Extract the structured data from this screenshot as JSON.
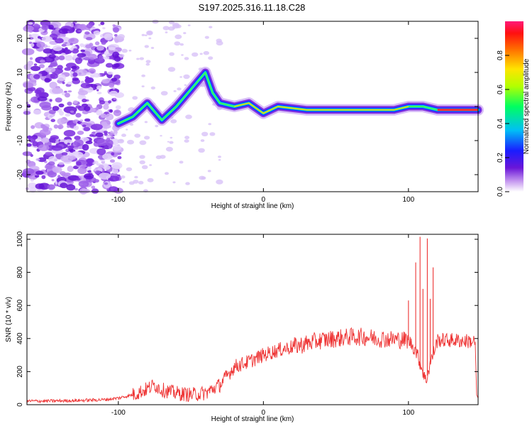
{
  "title": "S197.2025.316.11.18.C28",
  "chart_data": [
    {
      "type": "heatmap",
      "xlabel": "Height of straight line (km)",
      "ylabel": "Frequency (Hz)",
      "xlim": [
        -163,
        148
      ],
      "ylim": [
        -25,
        25
      ],
      "xticks": [
        -100,
        0,
        100
      ],
      "yticks": [
        -20,
        -10,
        0,
        10,
        20
      ],
      "colorbar": {
        "label": "Normalized spectral amplitude",
        "range": [
          0,
          1
        ],
        "ticks": [
          "0.0",
          "0.2",
          "0.4",
          "0.6",
          "0.8"
        ]
      },
      "ridge": [
        {
          "x": -100,
          "y": -5
        },
        {
          "x": -90,
          "y": -3
        },
        {
          "x": -80,
          "y": 1
        },
        {
          "x": -70,
          "y": -4
        },
        {
          "x": -60,
          "y": 0
        },
        {
          "x": -50,
          "y": 5
        },
        {
          "x": -40,
          "y": 10
        },
        {
          "x": -35,
          "y": 4
        },
        {
          "x": -30,
          "y": 1
        },
        {
          "x": -20,
          "y": 0
        },
        {
          "x": -10,
          "y": 1
        },
        {
          "x": 0,
          "y": -2
        },
        {
          "x": 10,
          "y": 0
        },
        {
          "x": 30,
          "y": -1
        },
        {
          "x": 60,
          "y": -1
        },
        {
          "x": 90,
          "y": -1
        },
        {
          "x": 100,
          "y": 0
        },
        {
          "x": 110,
          "y": 0
        },
        {
          "x": 120,
          "y": -1
        },
        {
          "x": 148,
          "y": -1
        }
      ]
    },
    {
      "type": "line",
      "xlabel": "Height of straight line (km)",
      "ylabel": "SNR (10 * v/v)",
      "xlim": [
        -163,
        148
      ],
      "ylim": [
        0,
        1030
      ],
      "xticks": [
        -100,
        0,
        100
      ],
      "yticks": [
        0,
        200,
        400,
        600,
        800,
        1000
      ],
      "series": [
        {
          "name": "SNR",
          "color": "#ee3333",
          "x": [
            -163,
            -150,
            -130,
            -110,
            -100,
            -90,
            -80,
            -75,
            -70,
            -60,
            -50,
            -40,
            -30,
            -20,
            -10,
            0,
            10,
            20,
            30,
            40,
            50,
            60,
            70,
            80,
            90,
            100,
            105,
            110,
            112,
            115,
            120,
            130,
            140,
            146,
            147,
            148
          ],
          "y": [
            22,
            22,
            25,
            30,
            40,
            60,
            95,
            120,
            90,
            70,
            60,
            70,
            120,
            230,
            260,
            300,
            330,
            350,
            370,
            390,
            400,
            410,
            410,
            400,
            395,
            390,
            330,
            200,
            140,
            250,
            390,
            390,
            385,
            380,
            60,
            40
          ]
        }
      ],
      "spikes": [
        {
          "x": 100,
          "y": 630
        },
        {
          "x": 105,
          "y": 860
        },
        {
          "x": 108,
          "y": 1015
        },
        {
          "x": 110,
          "y": 700
        },
        {
          "x": 113,
          "y": 1005
        },
        {
          "x": 115,
          "y": 640
        },
        {
          "x": 117,
          "y": 830
        }
      ]
    }
  ]
}
